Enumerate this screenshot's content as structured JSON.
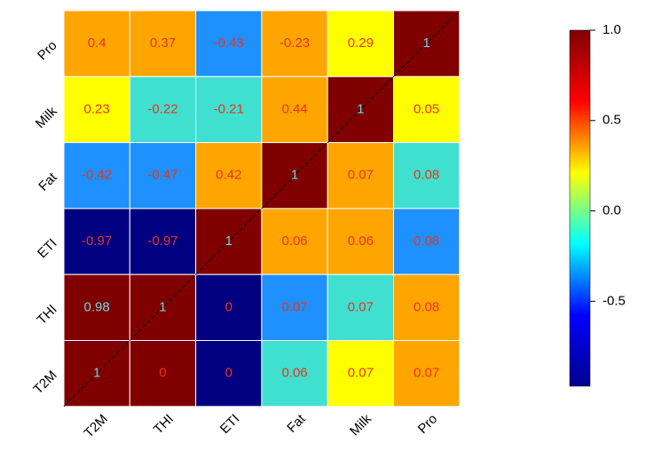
{
  "chart_data": {
    "type": "heatmap",
    "x_categories": [
      "T2M",
      "THI",
      "ETI",
      "Fat",
      "Milk",
      "Pro"
    ],
    "y_categories": [
      "Pro",
      "Milk",
      "Fat",
      "ETI",
      "THI",
      "T2M"
    ],
    "values": [
      [
        0.4,
        0.37,
        -0.43,
        -0.23,
        0.29,
        1
      ],
      [
        0.23,
        -0.22,
        -0.21,
        0.44,
        1,
        0.05
      ],
      [
        -0.42,
        -0.47,
        0.42,
        1,
        0.07,
        0.08
      ],
      [
        -0.97,
        -0.97,
        1,
        0.06,
        0.06,
        0.08
      ],
      [
        0.98,
        1,
        0,
        0.07,
        0.07,
        0.08
      ],
      [
        1,
        0,
        0,
        0.06,
        0.07,
        0.07
      ]
    ],
    "cell_colors": [
      [
        "#ffa500",
        "#ffa500",
        "#1e90ff",
        "#ffa500",
        "#ffff00",
        "#800000"
      ],
      [
        "#ffff00",
        "#40e0d0",
        "#40e0d0",
        "#ffa500",
        "#800000",
        "#ffff00"
      ],
      [
        "#1e90ff",
        "#1e90ff",
        "#ffa500",
        "#800000",
        "#ffa500",
        "#40e0d0"
      ],
      [
        "#000080",
        "#000080",
        "#800000",
        "#ffa500",
        "#ffa500",
        "#1e90ff"
      ],
      [
        "#800000",
        "#800000",
        "#000080",
        "#1e90ff",
        "#40e0d0",
        "#ffa500"
      ],
      [
        "#800000",
        "#800000",
        "#000080",
        "#40e0d0",
        "#ffff00",
        "#ffa500"
      ]
    ],
    "text_colors": [
      [
        "#e8341c",
        "#e8341c",
        "#e8341c",
        "#e8341c",
        "#e8341c",
        "#6fd6e0"
      ],
      [
        "#e8341c",
        "#e8341c",
        "#e8341c",
        "#e8341c",
        "#6fd6e0",
        "#e8341c"
      ],
      [
        "#e8341c",
        "#e8341c",
        "#e8341c",
        "#6fd6e0",
        "#e8341c",
        "#e8341c"
      ],
      [
        "#e8341c",
        "#e8341c",
        "#6fd6e0",
        "#e8341c",
        "#e8341c",
        "#e8341c"
      ],
      [
        "#6fd6e0",
        "#6fd6e0",
        "#e8341c",
        "#e8341c",
        "#e8341c",
        "#e8341c"
      ],
      [
        "#6fd6e0",
        "#e8341c",
        "#e8341c",
        "#e8341c",
        "#e8341c",
        "#e8341c"
      ]
    ],
    "diagonal_line": true,
    "colorbar": {
      "colors": [
        "#00008f",
        "#0000ff",
        "#00ffff",
        "#ffff00",
        "#ff0000",
        "#800000"
      ],
      "lim": [
        -0.97,
        1
      ],
      "ticks": [
        {
          "value": 1,
          "label": "1.0"
        },
        {
          "value": 0.5,
          "label": "0.5"
        },
        {
          "value": 0,
          "label": "0.0"
        },
        -0.5
      ]
    }
  }
}
